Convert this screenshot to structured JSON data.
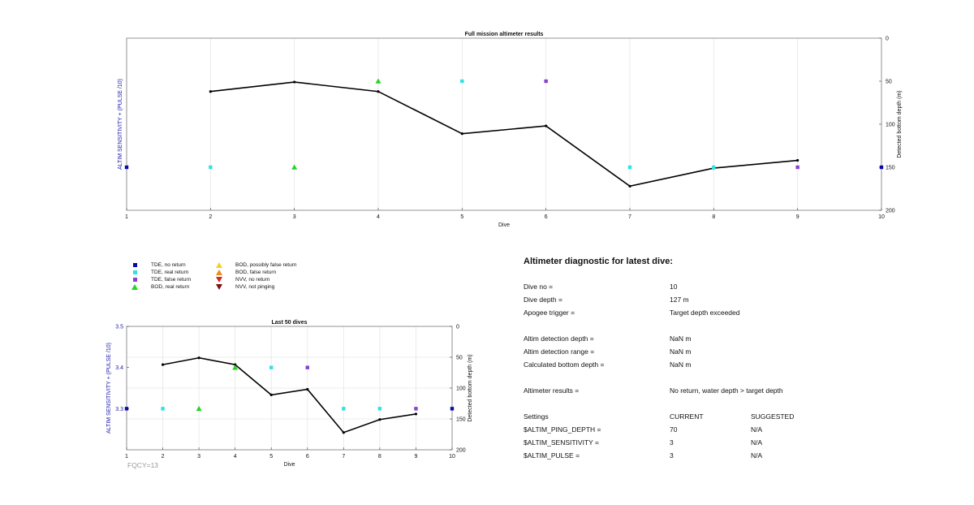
{
  "chart_data": [
    {
      "type": "line",
      "title": "Full mission altimeter results",
      "xlabel": "Dive",
      "ylabel_left": "ALTIM SENSITIVITY + (PULSE /10)",
      "ylabel_right": "Detected bottom depth (m)",
      "xlim": [
        1,
        10
      ],
      "xticks": [
        "1",
        "2",
        "3",
        "4",
        "5",
        "6",
        "7",
        "8",
        "9",
        "10"
      ],
      "right_ylim": [
        0,
        200
      ],
      "right_yticks": [
        "0",
        "50",
        "100",
        "150",
        "200"
      ],
      "right_reversed": true,
      "grid": true,
      "series": [
        {
          "name": "Detected bottom depth",
          "color": "#000000",
          "x": [
            2,
            3,
            4,
            5,
            6,
            7,
            8,
            9
          ],
          "y": [
            62,
            51,
            62,
            111,
            102,
            172,
            151,
            142
          ]
        },
        {
          "name": "TDE, no return",
          "color": "#0a0aa8",
          "marker": "square",
          "x": [
            1,
            10
          ],
          "y": [
            150,
            150
          ]
        },
        {
          "name": "TDE, real return",
          "color": "#2ee3e3",
          "marker": "square",
          "x": [
            2,
            5,
            7,
            8
          ],
          "y": [
            150,
            50,
            150,
            150
          ]
        },
        {
          "name": "TDE, false return",
          "color": "#8a3fcf",
          "marker": "square",
          "x": [
            6,
            9
          ],
          "y": [
            50,
            150
          ]
        },
        {
          "name": "BOD, real return",
          "color": "#22d622",
          "marker": "triangle-up",
          "x": [
            3,
            4
          ],
          "y": [
            150,
            50
          ]
        }
      ]
    },
    {
      "type": "line",
      "title": "Last 50 dives",
      "xlabel": "Dive",
      "ylabel_left": "ALTIM SENSITIVITY + (PULSE /10)",
      "ylabel_right": "Detected bottom depth (m)",
      "xlim": [
        1,
        10
      ],
      "xticks": [
        "1",
        "2",
        "3",
        "4",
        "5",
        "6",
        "7",
        "8",
        "9",
        "10"
      ],
      "left_ylim": [
        3.2,
        3.5
      ],
      "left_yticks": [
        "3.3",
        "3.4",
        "3.5"
      ],
      "right_ylim": [
        0,
        200
      ],
      "right_yticks": [
        "0",
        "50",
        "100",
        "150",
        "200"
      ],
      "right_reversed": true,
      "grid": true,
      "series": [
        {
          "name": "Detected bottom depth",
          "color": "#000000",
          "x": [
            2,
            3,
            4,
            5,
            6,
            7,
            8,
            9
          ],
          "y": [
            62,
            51,
            62,
            111,
            102,
            172,
            151,
            142
          ]
        },
        {
          "name": "TDE, no return",
          "color": "#0a0aa8",
          "marker": "square",
          "x": [
            1,
            10
          ],
          "y": [
            3.3,
            3.3
          ]
        },
        {
          "name": "TDE, real return",
          "color": "#2ee3e3",
          "marker": "square",
          "x": [
            2,
            5,
            7,
            8
          ],
          "y": [
            3.3,
            3.4,
            3.3,
            3.3
          ]
        },
        {
          "name": "TDE, false return",
          "color": "#8a3fcf",
          "marker": "square",
          "x": [
            6,
            9
          ],
          "y": [
            3.4,
            3.3
          ]
        },
        {
          "name": "BOD, real return",
          "color": "#22d622",
          "marker": "triangle-up",
          "x": [
            3,
            4
          ],
          "y": [
            3.3,
            3.4
          ]
        }
      ]
    }
  ],
  "legend": {
    "items": [
      {
        "label": "TDE, no return",
        "color": "#0a0aa8",
        "marker": "square"
      },
      {
        "label": "TDE, real return",
        "color": "#2ee3e3",
        "marker": "square"
      },
      {
        "label": "TDE, false return",
        "color": "#8a3fcf",
        "marker": "square"
      },
      {
        "label": "BOD, real return",
        "color": "#22d622",
        "marker": "triangle-up"
      },
      {
        "label": "BOD, possibly false return",
        "color": "#f2d21a",
        "marker": "triangle-up"
      },
      {
        "label": "BOD, false return",
        "color": "#f08a1a",
        "marker": "triangle-up"
      },
      {
        "label": "NVV, no return",
        "color": "#d02a1a",
        "marker": "triangle-down"
      },
      {
        "label": "NVV, not pinging",
        "color": "#7a1010",
        "marker": "triangle-down"
      }
    ]
  },
  "footer": {
    "fqcy": "FQCY=13"
  },
  "diagnostic": {
    "title": "Altimeter diagnostic for latest dive:",
    "rows": [
      {
        "label": "Dive no =",
        "value": "10"
      },
      {
        "label": "Dive depth =",
        "value": "127 m"
      },
      {
        "label": "Apogee trigger =",
        "value": "Target depth exceeded"
      },
      {
        "label": "Altim detection depth =",
        "value": "NaN m"
      },
      {
        "label": "Altim detection range =",
        "value": "NaN m"
      },
      {
        "label": "Calculated bottom depth =",
        "value": "NaN m"
      },
      {
        "label": "Altimeter results =",
        "value": "No return, water depth > target depth"
      }
    ],
    "settings": {
      "header": {
        "label": "Settings",
        "current": "CURRENT",
        "suggested": "SUGGESTED"
      },
      "rows": [
        {
          "label": "$ALTIM_PING_DEPTH =",
          "current": "70",
          "suggested": "N/A"
        },
        {
          "label": "$ALTIM_SENSITIVITY =",
          "current": "3",
          "suggested": "N/A"
        },
        {
          "label": "$ALTIM_PULSE =",
          "current": "3",
          "suggested": "N/A"
        }
      ]
    }
  }
}
